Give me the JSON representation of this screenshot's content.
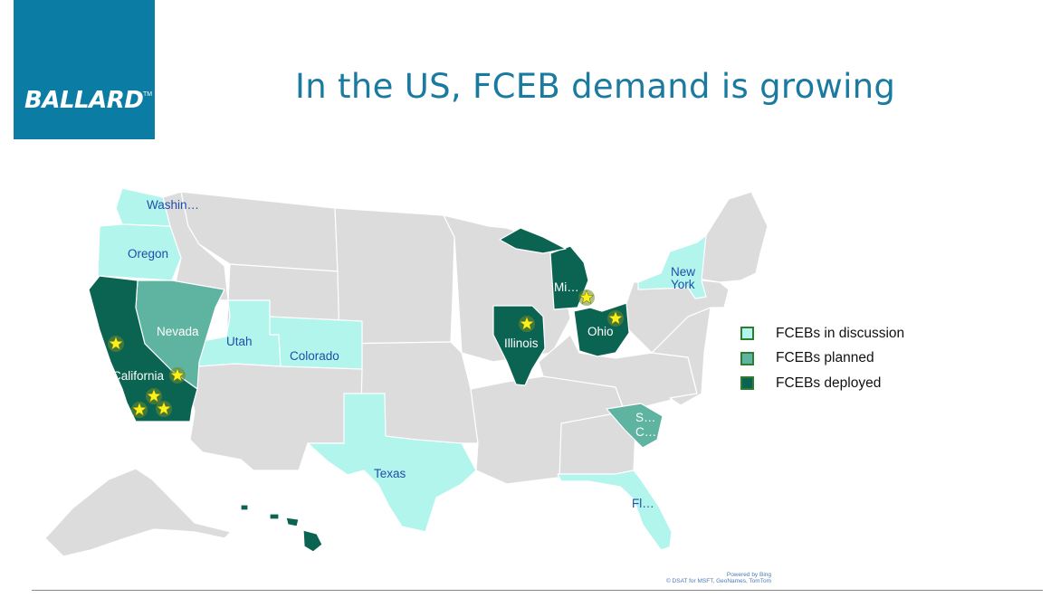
{
  "logo": {
    "text": "BALLARD",
    "tm": "TM"
  },
  "title": "In the US, FCEB demand is growing",
  "colors": {
    "base": "#dcdcdc",
    "discussion": "#b2f5ec",
    "planned": "#5fb3a1",
    "deployed": "#0b6352",
    "star": "#fbf21b",
    "brand": "#0b7ca4"
  },
  "states": {
    "washington": "Washin…",
    "oregon": "Oregon",
    "nevada": "Nevada",
    "utah": "Utah",
    "colorado": "Colorado",
    "california": "California",
    "texas": "Texas",
    "illinois": "Illinois",
    "michigan": "Mi…",
    "ohio": "Ohio",
    "new_york_1": "New",
    "new_york_2": "York",
    "south_carolina_1": "S…",
    "south_carolina_2": "C…",
    "florida": "Fl…"
  },
  "legend": [
    {
      "label": "FCEBs in discussion",
      "status": "discussion"
    },
    {
      "label": "FCEBs planned",
      "status": "planned"
    },
    {
      "label": "FCEBs deployed",
      "status": "deployed"
    }
  ],
  "credits": {
    "line1": "Powered by Bing",
    "line2": "© DSAT for MSFT, GeoNames, TomTom"
  }
}
